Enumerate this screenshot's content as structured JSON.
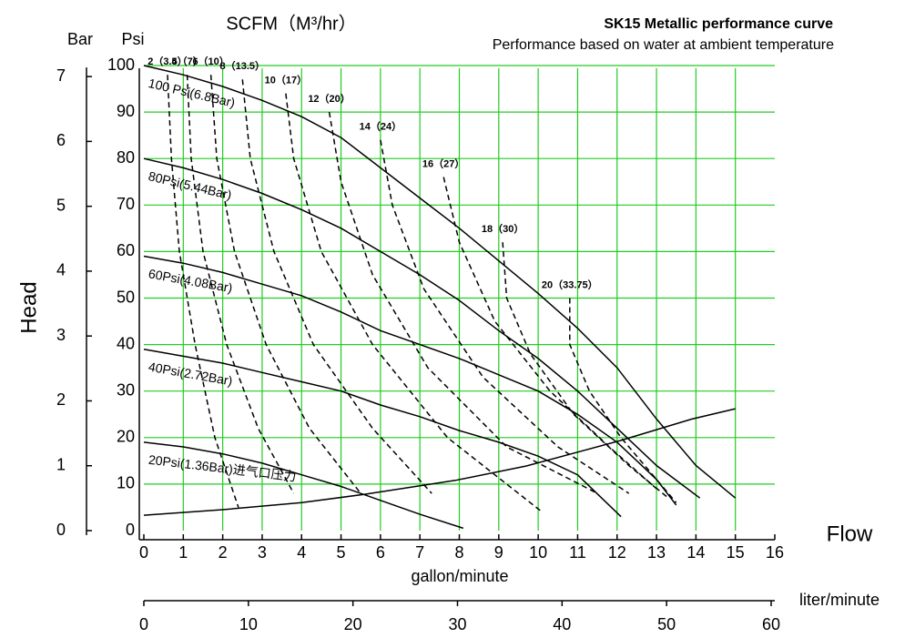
{
  "chart_data": {
    "type": "line",
    "title": "SK15 Metallic performance curve",
    "subtitle": "Performance based on water at ambient temperature",
    "top_label": "SCFM（M³/hr）",
    "ylabel": "Head",
    "y_unit": "Psi",
    "y2_unit": "Bar",
    "xlabel": "Flow",
    "x_unit": "gallon/minute",
    "x2_unit": "liter/minute",
    "xlim": [
      0,
      16
    ],
    "xticks": [
      0,
      1,
      2,
      3,
      4,
      5,
      6,
      7,
      8,
      9,
      10,
      11,
      12,
      13,
      14,
      15,
      16
    ],
    "x2lim": [
      0,
      60.35
    ],
    "x2ticks": [
      0,
      10,
      20,
      30,
      40,
      50,
      60
    ],
    "ylim": [
      0,
      100
    ],
    "yticks": [
      0,
      10,
      20,
      30,
      40,
      50,
      60,
      70,
      80,
      90,
      100
    ],
    "y2lim": [
      0,
      7.17
    ],
    "y2ticks": [
      0,
      1,
      2,
      3,
      4,
      5,
      6,
      7
    ],
    "grid": true,
    "grid_color": "#22cc22",
    "series": [
      {
        "name": "100 Psi(6.8Bar)",
        "style": "solid",
        "color": "#000000",
        "x": [
          0,
          1,
          2,
          3,
          4,
          5,
          6,
          7,
          8,
          9,
          10,
          11,
          12,
          13,
          14,
          15
        ],
        "values": [
          100,
          98,
          95.5,
          92.5,
          89,
          84.5,
          78,
          71.5,
          65,
          58,
          51,
          43.5,
          35,
          24,
          14,
          7
        ]
      },
      {
        "name": "80Psi(5.44Bar)",
        "style": "solid",
        "color": "#000000",
        "x": [
          0,
          1,
          2,
          3,
          4,
          5,
          6,
          7,
          8,
          9,
          10,
          11,
          12,
          13,
          14.1
        ],
        "values": [
          80,
          78,
          75.5,
          72.5,
          69,
          65,
          60,
          55,
          49.5,
          43,
          37,
          30,
          22,
          14,
          7
        ]
      },
      {
        "name": "60Psi(4.08Bar)",
        "style": "solid",
        "color": "#000000",
        "x": [
          0,
          1,
          2,
          3,
          4,
          5,
          6,
          7,
          8,
          9,
          10,
          11,
          12,
          13,
          13.5
        ],
        "values": [
          59,
          57.5,
          55.5,
          53,
          50.5,
          47,
          43,
          40,
          37,
          33.5,
          30,
          25,
          19,
          11,
          5.5
        ]
      },
      {
        "name": "40Psi(2.72Bar)",
        "style": "solid",
        "color": "#000000",
        "x": [
          0,
          1,
          2,
          3,
          4,
          5,
          6,
          7,
          8,
          9,
          10,
          11,
          12.1
        ],
        "values": [
          39,
          37.5,
          36,
          34,
          32,
          30,
          27,
          24.5,
          21.5,
          19,
          16,
          12,
          3
        ]
      },
      {
        "name": "20Psi(1.36Bar)进气口压力",
        "style": "solid",
        "color": "#000000",
        "x": [
          0,
          1,
          2,
          3,
          4,
          5,
          6,
          7,
          8.1
        ],
        "values": [
          19,
          18,
          16.5,
          14.5,
          12,
          9.5,
          6.5,
          3.5,
          0.5
        ]
      },
      {
        "style": "solid",
        "color": "#000000",
        "x": [
          0,
          2,
          4,
          5.6,
          7.9,
          9.7,
          12.1,
          13.9,
          15
        ],
        "values": [
          3.3,
          4.5,
          6,
          7.8,
          10.8,
          13.9,
          19.4,
          24,
          26.2
        ]
      },
      {
        "name": "2（3.5）",
        "style": "dashed",
        "color": "#000000",
        "x": [
          0.6,
          0.7,
          0.9,
          1.3,
          1.8,
          2.4
        ],
        "values": [
          98,
          80,
          60,
          40,
          20,
          5
        ]
      },
      {
        "name": "4（7）",
        "style": "dashed",
        "color": "#000000",
        "x": [
          1.1,
          1.2,
          1.5,
          2.1,
          2.9,
          3.8
        ],
        "values": [
          98,
          80,
          60,
          40,
          22,
          8
        ]
      },
      {
        "name": "6（10）",
        "style": "dashed",
        "color": "#000000",
        "x": [
          1.7,
          1.85,
          2.3,
          3.1,
          4.2,
          5.5
        ],
        "values": [
          98,
          80,
          60,
          40,
          22,
          8
        ]
      },
      {
        "name": "8（13.5）",
        "style": "dashed",
        "color": "#000000",
        "x": [
          2.5,
          2.7,
          3.3,
          4.3,
          5.8,
          7.3
        ],
        "values": [
          97,
          80,
          60,
          40,
          22,
          8
        ]
      },
      {
        "name": "10（17）",
        "style": "dashed",
        "color": "#000000",
        "x": [
          3.6,
          3.8,
          4.5,
          5.8,
          7.7,
          10.1
        ],
        "values": [
          94,
          80,
          60,
          40,
          20,
          4
        ]
      },
      {
        "name": "12（20）",
        "style": "dashed",
        "color": "#000000",
        "x": [
          4.7,
          5,
          5.8,
          7.2,
          9.2,
          11.5
        ],
        "values": [
          90,
          75,
          55,
          35,
          18,
          8
        ]
      },
      {
        "name": "14（24）",
        "style": "dashed",
        "color": "#000000",
        "x": [
          6,
          6.3,
          7.1,
          8.6,
          10.5,
          12.3
        ],
        "values": [
          84,
          70,
          52,
          33,
          18,
          8
        ]
      },
      {
        "name": "16（27）",
        "style": "dashed",
        "color": "#000000",
        "x": [
          7.6,
          8,
          8.9,
          10.3,
          11.8,
          13
        ],
        "values": [
          76,
          62,
          45,
          30,
          18,
          9
        ]
      },
      {
        "name": "18（30）",
        "style": "dashed",
        "color": "#000000",
        "x": [
          9.1,
          9.2,
          9.8,
          10.9,
          12.3,
          13.3
        ],
        "values": [
          62,
          50,
          38,
          25,
          14,
          7
        ]
      },
      {
        "name": "20（33.75）",
        "style": "dashed",
        "color": "#000000",
        "x": [
          10.8,
          10.8,
          11.3,
          12.1,
          13.1,
          13.5
        ],
        "values": [
          50,
          40,
          30,
          20,
          10,
          6
        ]
      }
    ]
  }
}
